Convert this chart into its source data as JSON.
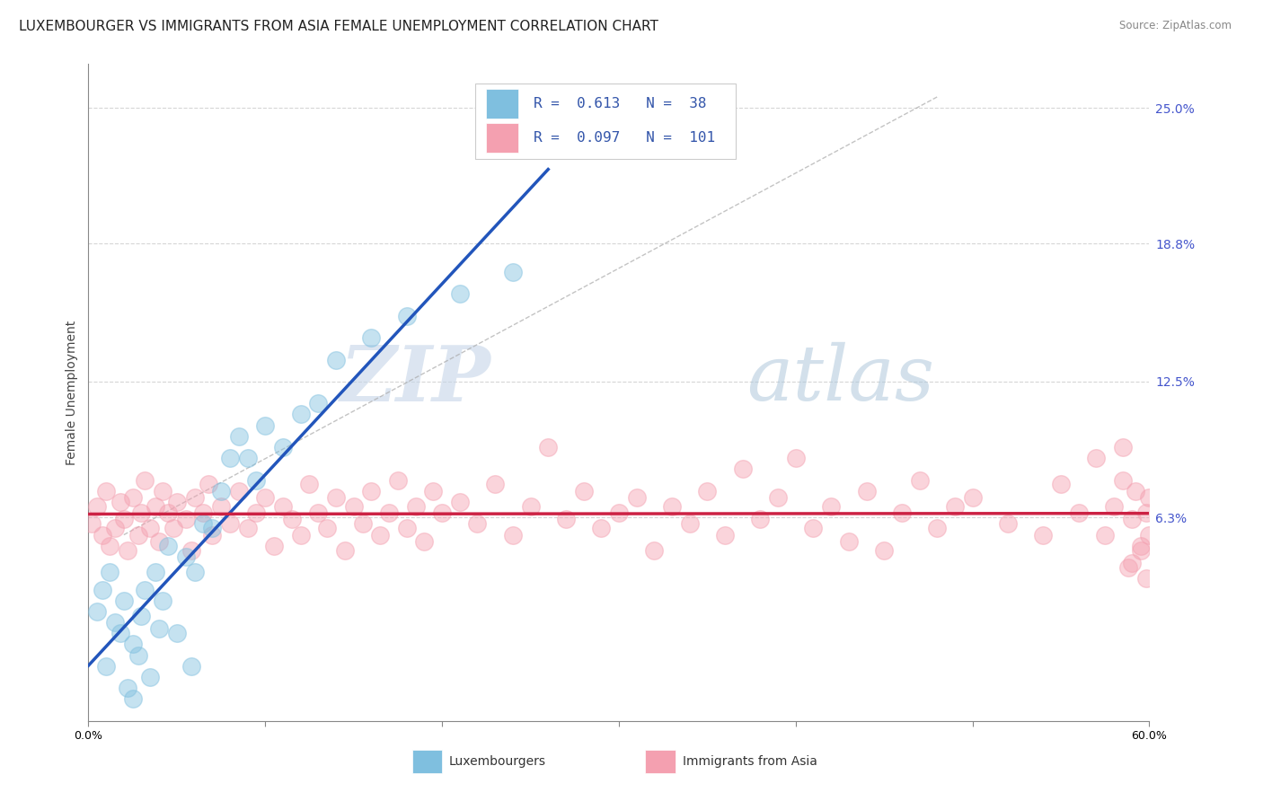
{
  "title": "LUXEMBOURGER VS IMMIGRANTS FROM ASIA FEMALE UNEMPLOYMENT CORRELATION CHART",
  "source": "Source: ZipAtlas.com",
  "xlabel_lux": "Luxembourgers",
  "xlabel_asia": "Immigrants from Asia",
  "ylabel": "Female Unemployment",
  "xlim": [
    0.0,
    0.6
  ],
  "ylim": [
    -0.03,
    0.27
  ],
  "xticks": [
    0.0,
    0.1,
    0.2,
    0.3,
    0.4,
    0.5,
    0.6
  ],
  "xtick_labels": [
    "0.0%",
    "",
    "",
    "",
    "",
    "",
    "60.0%"
  ],
  "right_yticks": [
    0.063,
    0.125,
    0.188,
    0.25
  ],
  "right_ytick_labels": [
    "6.3%",
    "12.5%",
    "18.8%",
    "25.0%"
  ],
  "r_lux": 0.613,
  "n_lux": 38,
  "r_asia": 0.097,
  "n_asia": 101,
  "color_lux": "#7fbfdf",
  "color_asia": "#f4a0b0",
  "lux_scatter_x": [
    0.005,
    0.008,
    0.01,
    0.012,
    0.015,
    0.018,
    0.02,
    0.022,
    0.025,
    0.025,
    0.028,
    0.03,
    0.032,
    0.035,
    0.038,
    0.04,
    0.042,
    0.045,
    0.05,
    0.055,
    0.058,
    0.06,
    0.065,
    0.07,
    0.075,
    0.08,
    0.085,
    0.09,
    0.095,
    0.1,
    0.11,
    0.12,
    0.13,
    0.14,
    0.16,
    0.18,
    0.21,
    0.24
  ],
  "lux_scatter_y": [
    0.02,
    0.03,
    -0.005,
    0.038,
    0.015,
    0.01,
    0.025,
    -0.015,
    0.005,
    -0.02,
    0.0,
    0.018,
    0.03,
    -0.01,
    0.038,
    0.012,
    0.025,
    0.05,
    0.01,
    0.045,
    -0.005,
    0.038,
    0.06,
    0.058,
    0.075,
    0.09,
    0.1,
    0.09,
    0.08,
    0.105,
    0.095,
    0.11,
    0.115,
    0.135,
    0.145,
    0.155,
    0.165,
    0.175
  ],
  "asia_scatter_x": [
    0.002,
    0.005,
    0.008,
    0.01,
    0.012,
    0.015,
    0.018,
    0.02,
    0.022,
    0.025,
    0.028,
    0.03,
    0.032,
    0.035,
    0.038,
    0.04,
    0.042,
    0.045,
    0.048,
    0.05,
    0.055,
    0.058,
    0.06,
    0.065,
    0.068,
    0.07,
    0.075,
    0.08,
    0.085,
    0.09,
    0.095,
    0.1,
    0.105,
    0.11,
    0.115,
    0.12,
    0.125,
    0.13,
    0.135,
    0.14,
    0.145,
    0.15,
    0.155,
    0.16,
    0.165,
    0.17,
    0.175,
    0.18,
    0.185,
    0.19,
    0.195,
    0.2,
    0.21,
    0.22,
    0.23,
    0.24,
    0.25,
    0.26,
    0.27,
    0.28,
    0.29,
    0.3,
    0.31,
    0.32,
    0.33,
    0.34,
    0.35,
    0.36,
    0.37,
    0.38,
    0.39,
    0.4,
    0.41,
    0.42,
    0.43,
    0.44,
    0.45,
    0.46,
    0.47,
    0.48,
    0.49,
    0.5,
    0.52,
    0.54,
    0.55,
    0.56,
    0.57,
    0.575,
    0.58,
    0.585,
    0.588,
    0.59,
    0.592,
    0.595,
    0.598,
    0.6,
    0.6,
    0.598,
    0.595,
    0.59,
    0.585
  ],
  "asia_scatter_y": [
    0.06,
    0.068,
    0.055,
    0.075,
    0.05,
    0.058,
    0.07,
    0.062,
    0.048,
    0.072,
    0.055,
    0.065,
    0.08,
    0.058,
    0.068,
    0.052,
    0.075,
    0.065,
    0.058,
    0.07,
    0.062,
    0.048,
    0.072,
    0.065,
    0.078,
    0.055,
    0.068,
    0.06,
    0.075,
    0.058,
    0.065,
    0.072,
    0.05,
    0.068,
    0.062,
    0.055,
    0.078,
    0.065,
    0.058,
    0.072,
    0.048,
    0.068,
    0.06,
    0.075,
    0.055,
    0.065,
    0.08,
    0.058,
    0.068,
    0.052,
    0.075,
    0.065,
    0.07,
    0.06,
    0.078,
    0.055,
    0.068,
    0.095,
    0.062,
    0.075,
    0.058,
    0.065,
    0.072,
    0.048,
    0.068,
    0.06,
    0.075,
    0.055,
    0.085,
    0.062,
    0.072,
    0.09,
    0.058,
    0.068,
    0.052,
    0.075,
    0.048,
    0.065,
    0.08,
    0.058,
    0.068,
    0.072,
    0.06,
    0.055,
    0.078,
    0.065,
    0.09,
    0.055,
    0.068,
    0.095,
    0.04,
    0.062,
    0.075,
    0.048,
    0.035,
    0.072,
    0.055,
    0.065,
    0.05,
    0.042,
    0.08
  ],
  "background_color": "#ffffff",
  "grid_color": "#cccccc",
  "watermark_zip": "ZIP",
  "watermark_atlas": "atlas",
  "title_fontsize": 11,
  "axis_label_fontsize": 10,
  "tick_fontsize": 9,
  "legend_r_color": "#3355aa",
  "lux_trend_x_end": 0.26,
  "lux_trend_color": "#2255bb",
  "asia_trend_color": "#cc2244",
  "diag_color": "#aaaaaa"
}
